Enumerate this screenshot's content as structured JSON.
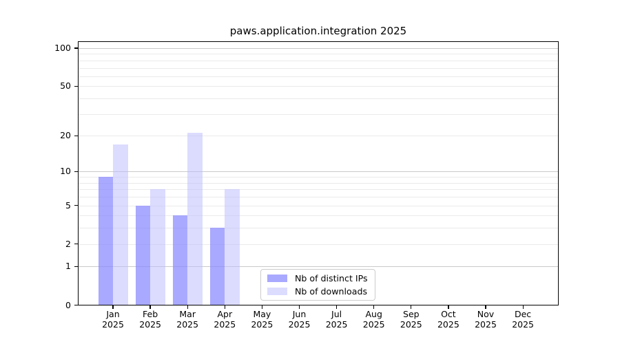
{
  "title": "paws.application.integration 2025",
  "chart_data": {
    "type": "bar",
    "title": "paws.application.integration 2025",
    "categories": [
      "Jan 2025",
      "Feb 2025",
      "Mar 2025",
      "Apr 2025",
      "May 2025",
      "Jun 2025",
      "Jul 2025",
      "Aug 2025",
      "Sep 2025",
      "Oct 2025",
      "Nov 2025",
      "Dec 2025"
    ],
    "series": [
      {
        "name": "Nb of distinct IPs",
        "color": "#8888ff",
        "alpha": 0.72,
        "values": [
          9,
          5,
          4,
          3,
          null,
          null,
          null,
          null,
          null,
          null,
          null,
          null
        ]
      },
      {
        "name": "Nb of downloads",
        "color": "#bbbbff",
        "alpha": 0.52,
        "values": [
          17,
          7,
          21,
          7,
          null,
          null,
          null,
          null,
          null,
          null,
          null,
          null
        ]
      }
    ],
    "xlabel": "",
    "ylabel": "",
    "yscale": "log1p",
    "ylim": [
      0,
      114
    ],
    "yticks": [
      100,
      50,
      20,
      10,
      5,
      2,
      1,
      0
    ],
    "gridlines": {
      "major": [
        1,
        10,
        100
      ],
      "minor": [
        2,
        3,
        4,
        5,
        6,
        7,
        8,
        9,
        20,
        30,
        40,
        50,
        60,
        70,
        80,
        90
      ]
    },
    "grid": true,
    "legend_position": "bottom-center-inside",
    "axis_color": "#000000",
    "major_grid_color": "#c9c9c9",
    "minor_grid_color": "#eaeaea"
  }
}
